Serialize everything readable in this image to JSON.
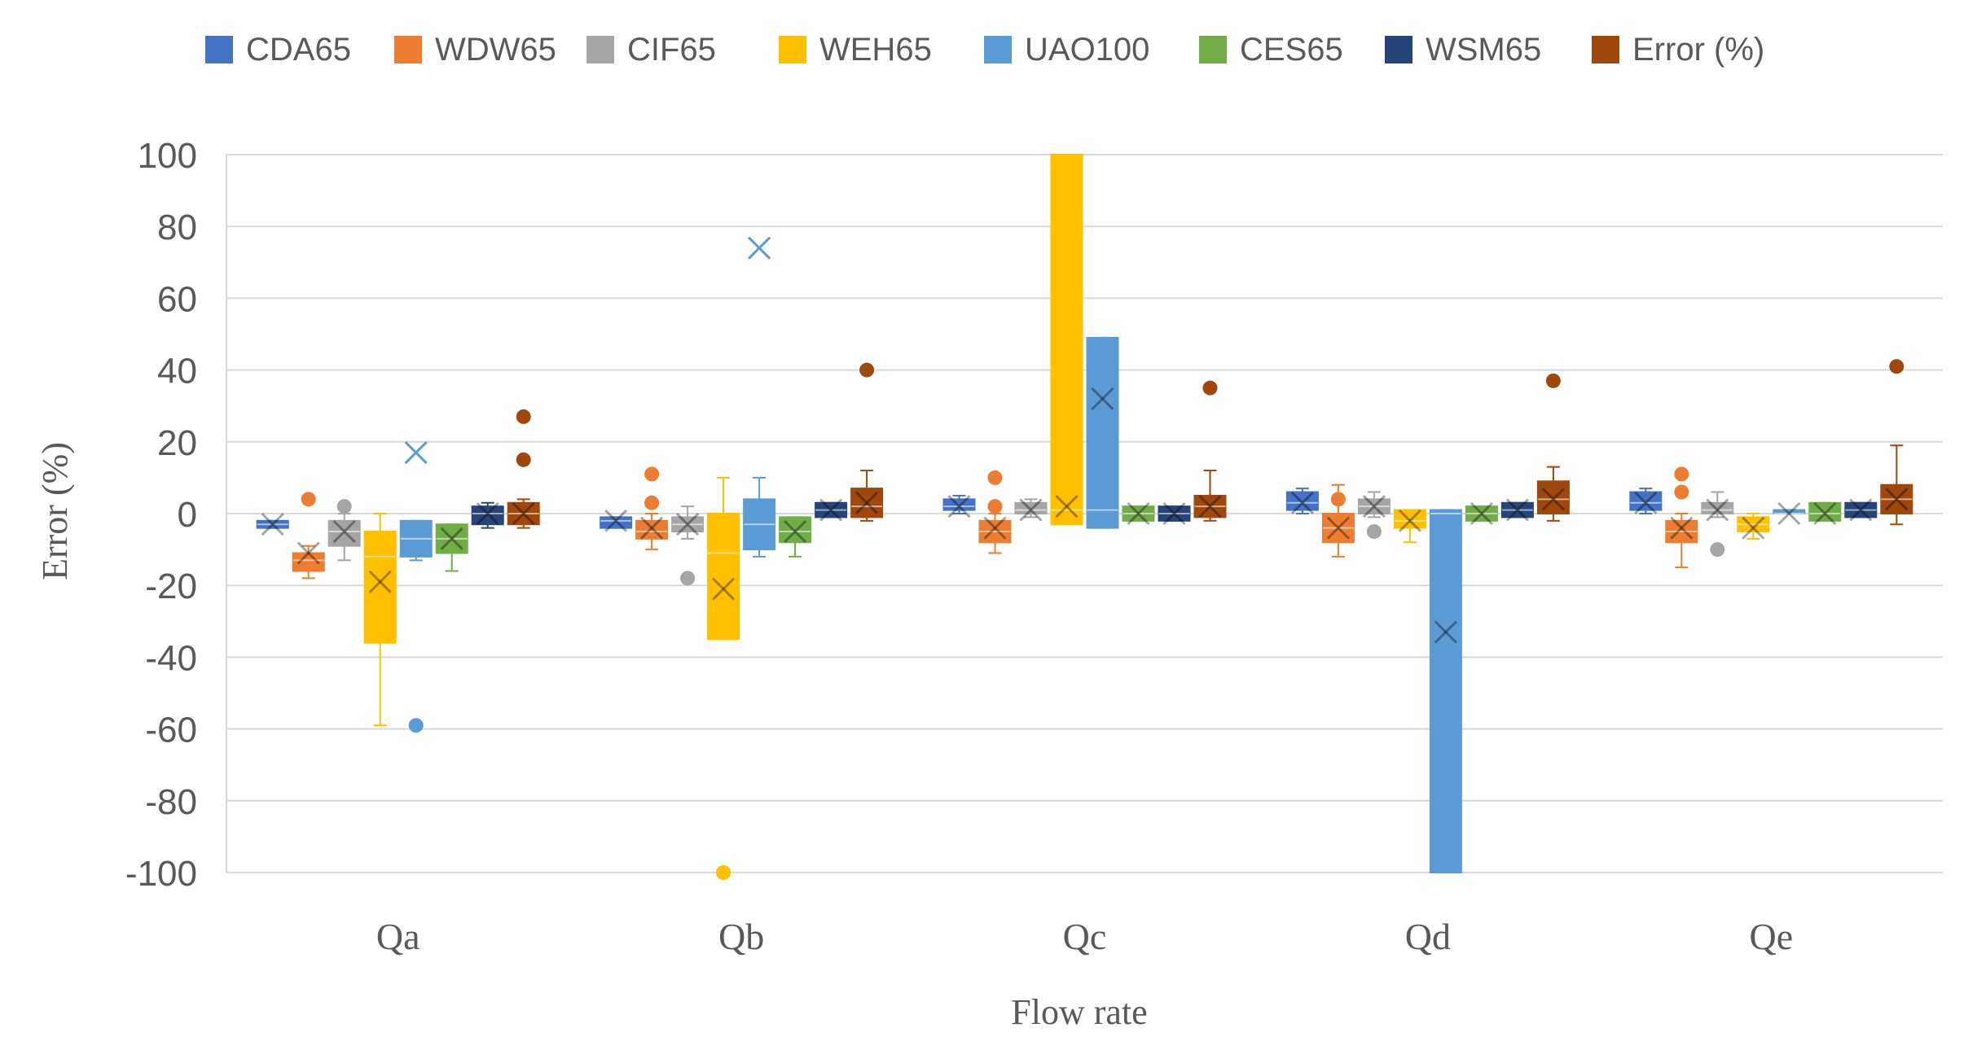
{
  "chart_data": {
    "type": "box",
    "title": "",
    "xlabel": "Flow rate",
    "ylabel": "Error (%)",
    "ylim": [
      -100,
      100
    ],
    "yticks": [
      100,
      80,
      60,
      40,
      20,
      0,
      -20,
      -40,
      -60,
      -80,
      -100
    ],
    "grid": true,
    "legend_position": "top",
    "categories": [
      "Qa",
      "Qb",
      "Qc",
      "Qd",
      "Qe"
    ],
    "series": [
      {
        "name": "CDA65",
        "color": "#4472C4",
        "boxes": [
          {
            "q1": -4,
            "q3": -2,
            "median": -3,
            "mean": -3,
            "wlo": -4,
            "whi": -2,
            "outliers": []
          },
          {
            "q1": -4,
            "q3": -1,
            "median": -2,
            "mean": -2,
            "wlo": -4,
            "whi": -1,
            "outliers": []
          },
          {
            "q1": 1,
            "q3": 4,
            "median": 2,
            "mean": 2,
            "wlo": 0,
            "whi": 5,
            "outliers": []
          },
          {
            "q1": 1,
            "q3": 6,
            "median": 3,
            "mean": 3,
            "wlo": 0,
            "whi": 7,
            "outliers": []
          },
          {
            "q1": 1,
            "q3": 6,
            "median": 3,
            "mean": 3,
            "wlo": 0,
            "whi": 7,
            "outliers": []
          }
        ]
      },
      {
        "name": "WDW65",
        "color": "#ED7D31",
        "boxes": [
          {
            "q1": -16,
            "q3": -11,
            "median": -13,
            "mean": -11,
            "wlo": -18,
            "whi": -9,
            "outliers": [
              4
            ]
          },
          {
            "q1": -7,
            "q3": -2,
            "median": -5,
            "mean": -4,
            "wlo": -10,
            "whi": 0,
            "outliers": [
              3,
              11
            ]
          },
          {
            "q1": -8,
            "q3": -2,
            "median": -5,
            "mean": -4,
            "wlo": -11,
            "whi": 0,
            "outliers": [
              2,
              10
            ]
          },
          {
            "q1": -8,
            "q3": 0,
            "median": -4,
            "mean": -4,
            "wlo": -12,
            "whi": 8,
            "outliers": [
              4
            ]
          },
          {
            "q1": -8,
            "q3": -2,
            "median": -5,
            "mean": -4,
            "wlo": -15,
            "whi": 0,
            "outliers": [
              6,
              11
            ]
          }
        ]
      },
      {
        "name": "CIF65",
        "color": "#A5A5A5",
        "boxes": [
          {
            "q1": -9,
            "q3": -2,
            "median": -5,
            "mean": -5,
            "wlo": -13,
            "whi": 0,
            "outliers": [
              2
            ]
          },
          {
            "q1": -5,
            "q3": -1,
            "median": -3,
            "mean": -3,
            "wlo": -7,
            "whi": 2,
            "outliers": [
              -18
            ]
          },
          {
            "q1": 0,
            "q3": 3,
            "median": 1,
            "mean": 1,
            "wlo": -1,
            "whi": 4,
            "outliers": []
          },
          {
            "q1": 0,
            "q3": 4,
            "median": 2,
            "mean": 2,
            "wlo": -1,
            "whi": 6,
            "outliers": [
              -5
            ]
          },
          {
            "q1": 0,
            "q3": 3,
            "median": 1,
            "mean": 1,
            "wlo": -1,
            "whi": 6,
            "outliers": [
              -10
            ]
          }
        ]
      },
      {
        "name": "WEH65",
        "color": "#FFC000",
        "boxes": [
          {
            "q1": -36,
            "q3": -5,
            "median": -12,
            "mean": -19,
            "wlo": -59,
            "whi": 0,
            "outliers": []
          },
          {
            "q1": -35,
            "q3": 0,
            "median": -11,
            "mean": -21,
            "wlo": -35,
            "whi": 10,
            "outliers": [
              -100
            ]
          },
          {
            "q1": -3,
            "q3": 100,
            "median": 1,
            "mean": 2,
            "wlo": -3,
            "whi": 100,
            "outliers": []
          },
          {
            "q1": -4,
            "q3": 1,
            "median": -2,
            "mean": -2,
            "wlo": -8,
            "whi": 1,
            "outliers": []
          },
          {
            "q1": -5,
            "q3": -1,
            "median": -3,
            "mean": -4,
            "wlo": -7,
            "whi": 0,
            "outliers": []
          }
        ]
      },
      {
        "name": "UAO100",
        "color": "#5B9BD5",
        "boxes": [
          {
            "q1": -12,
            "q3": -2,
            "median": -7,
            "mean": 17,
            "wlo": -13,
            "whi": -2,
            "outliers": [
              -59
            ]
          },
          {
            "q1": -10,
            "q3": 4,
            "median": -3,
            "mean": 74,
            "wlo": -12,
            "whi": 10,
            "outliers": []
          },
          {
            "q1": -4,
            "q3": 49,
            "median": 1,
            "mean": 32,
            "wlo": -4,
            "whi": 49,
            "outliers": []
          },
          {
            "q1": -100,
            "q3": 1,
            "median": 0,
            "mean": -33,
            "wlo": -100,
            "whi": 1,
            "outliers": []
          },
          {
            "q1": 0,
            "q3": 1,
            "median": 0,
            "mean": 0,
            "wlo": 0,
            "whi": 1,
            "outliers": []
          }
        ]
      },
      {
        "name": "CES65",
        "color": "#70AD47",
        "boxes": [
          {
            "q1": -11,
            "q3": -3,
            "median": -7,
            "mean": -7,
            "wlo": -16,
            "whi": -3,
            "outliers": []
          },
          {
            "q1": -8,
            "q3": -1,
            "median": -5,
            "mean": -5,
            "wlo": -12,
            "whi": -1,
            "outliers": []
          },
          {
            "q1": -2,
            "q3": 2,
            "median": 0,
            "mean": 0,
            "wlo": -2,
            "whi": 2,
            "outliers": []
          },
          {
            "q1": -2,
            "q3": 2,
            "median": 0,
            "mean": 0,
            "wlo": -2,
            "whi": 2,
            "outliers": []
          },
          {
            "q1": -2,
            "q3": 3,
            "median": 0,
            "mean": 0,
            "wlo": -2,
            "whi": 3,
            "outliers": []
          }
        ]
      },
      {
        "name": "WSM65",
        "color": "#264478",
        "boxes": [
          {
            "q1": -3,
            "q3": 2,
            "median": 0,
            "mean": 0,
            "wlo": -4,
            "whi": 3,
            "outliers": []
          },
          {
            "q1": -1,
            "q3": 3,
            "median": 1,
            "mean": 1,
            "wlo": -1,
            "whi": 3,
            "outliers": []
          },
          {
            "q1": -2,
            "q3": 2,
            "median": 0,
            "mean": 0,
            "wlo": -2,
            "whi": 2,
            "outliers": []
          },
          {
            "q1": -1,
            "q3": 3,
            "median": 1,
            "mean": 1,
            "wlo": -1,
            "whi": 3,
            "outliers": []
          },
          {
            "q1": -1,
            "q3": 3,
            "median": 1,
            "mean": 1,
            "wlo": -1,
            "whi": 3,
            "outliers": []
          }
        ]
      },
      {
        "name": "Error (%)",
        "color": "#9E480E",
        "boxes": [
          {
            "q1": -3,
            "q3": 3,
            "median": 0,
            "mean": 0,
            "wlo": -4,
            "whi": 4,
            "outliers": [
              15,
              27
            ]
          },
          {
            "q1": -1,
            "q3": 7,
            "median": 2,
            "mean": 3,
            "wlo": -2,
            "whi": 12,
            "outliers": [
              40
            ]
          },
          {
            "q1": -1,
            "q3": 5,
            "median": 2,
            "mean": 2,
            "wlo": -2,
            "whi": 12,
            "outliers": [
              35
            ]
          },
          {
            "q1": 0,
            "q3": 9,
            "median": 4,
            "mean": 4,
            "wlo": -2,
            "whi": 13,
            "outliers": [
              37
            ]
          },
          {
            "q1": 0,
            "q3": 8,
            "median": 4,
            "mean": 4,
            "wlo": -3,
            "whi": 19,
            "outliers": [
              41
            ]
          }
        ]
      }
    ]
  }
}
